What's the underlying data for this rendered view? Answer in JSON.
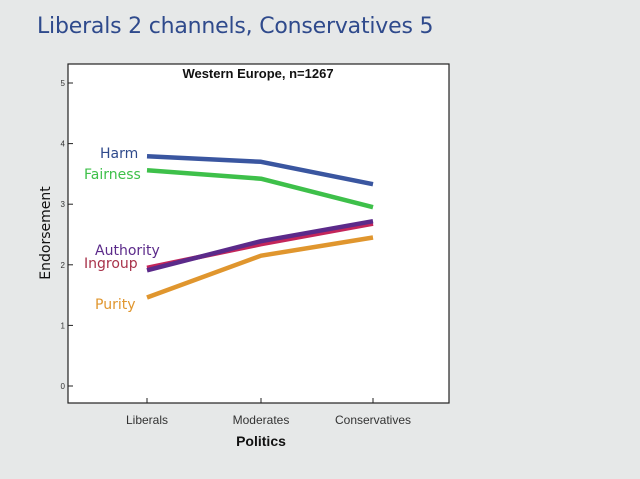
{
  "slide": {
    "title": "Liberals 2 channels, Conservatives 5"
  },
  "chart_data": {
    "type": "line",
    "title": "Western Europe, n=1267",
    "xlabel": "Politics",
    "ylabel": "Endorsement",
    "categories": [
      "Liberals",
      "Moderates",
      "Conservatives"
    ],
    "ylim": [
      0,
      5
    ],
    "yticks": [
      0,
      1,
      2,
      3,
      4,
      5
    ],
    "grid": false,
    "legend": "inline-left",
    "series": [
      {
        "name": "Harm",
        "values": [
          3.79,
          3.7,
          3.33
        ],
        "color": "#3a56a0"
      },
      {
        "name": "Fairness",
        "values": [
          3.56,
          3.42,
          2.95
        ],
        "color": "#3ec04a"
      },
      {
        "name": "Ingroup",
        "values": [
          1.95,
          2.34,
          2.68
        ],
        "color": "#c4265a"
      },
      {
        "name": "Authority",
        "values": [
          1.91,
          2.39,
          2.72
        ],
        "color": "#5b2a8a"
      },
      {
        "name": "Purity",
        "values": [
          1.46,
          2.15,
          2.45
        ],
        "color": "#e0962e"
      }
    ]
  }
}
